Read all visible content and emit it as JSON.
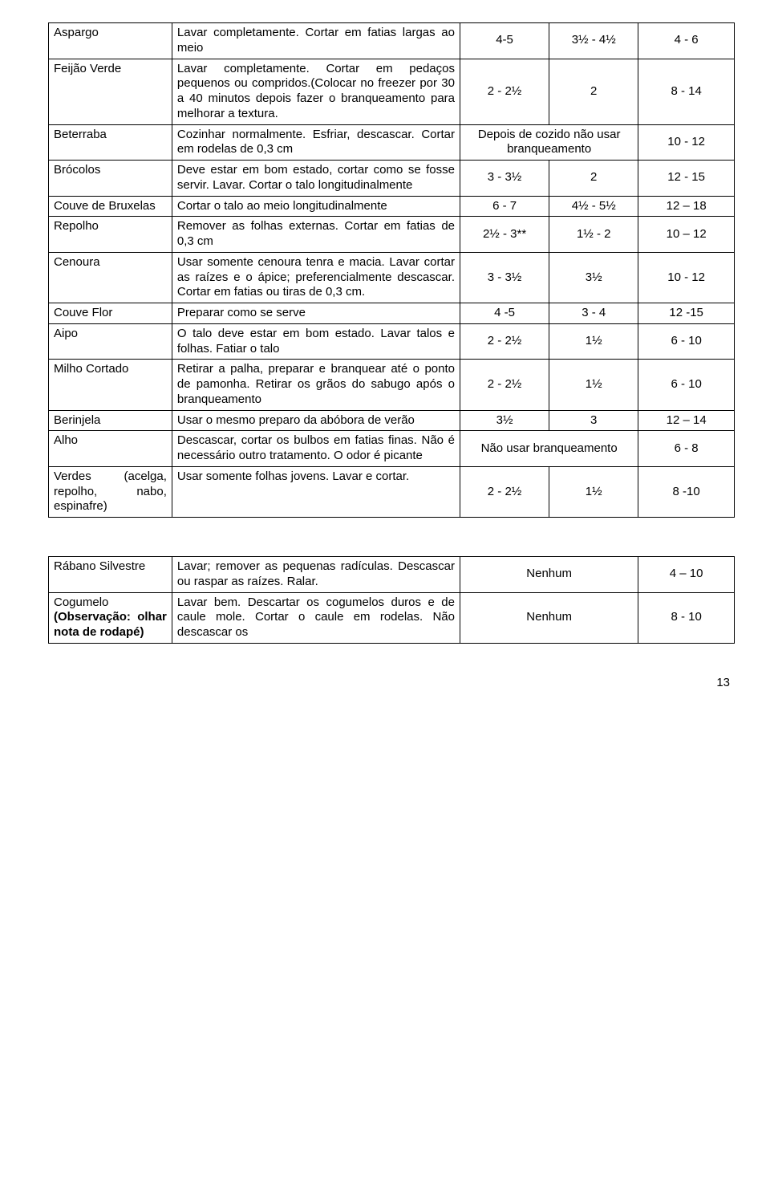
{
  "table1": {
    "rows": [
      {
        "a": "Aspargo",
        "b": "Lavar completamente. Cortar em fatias largas ao meio",
        "c": "4-5",
        "d": "3½ - 4½",
        "e": "4 - 6"
      },
      {
        "a": "Feijão Verde",
        "b": "Lavar completamente. Cortar em pedaços pequenos ou compridos.(Colocar no freezer por 30 a 40 minutos depois fazer o branqueamento para melhorar a textura.",
        "c": "2 - 2½",
        "d": "2",
        "e": "8 - 14"
      },
      {
        "a": "Beterraba",
        "b": "Cozinhar normalmente. Esfriar, descascar. Cortar em rodelas de 0,3 cm",
        "c_merged": "Depois de cozido não usar branqueamento",
        "e": "10 - 12"
      },
      {
        "a": "Brócolos",
        "b": "Deve estar em bom estado, cortar como se fosse servir. Lavar. Cortar o talo longitudinalmente",
        "c": "3 - 3½",
        "d": "2",
        "e": "12 - 15"
      },
      {
        "a": "Couve de Bruxelas",
        "b": "Cortar o talo ao meio longitudinalmente",
        "c": "6 - 7",
        "d": "4½ - 5½",
        "e": "12 – 18"
      },
      {
        "a": "Repolho",
        "b": "Remover as folhas externas. Cortar em fatias de 0,3 cm",
        "c": "2½ - 3**",
        "d": "1½ - 2",
        "e": "10 – 12"
      },
      {
        "a": "Cenoura",
        "b": "Usar somente cenoura tenra e macia. Lavar cortar as raízes e o ápice; preferencialmente descascar. Cortar em fatias ou tiras de 0,3 cm.",
        "c": "3 - 3½",
        "d": "3½",
        "e": "10 - 12"
      },
      {
        "a": "Couve Flor",
        "b": "Preparar como se serve",
        "c": "4 -5",
        "d": "3 - 4",
        "e": "12 -15"
      },
      {
        "a": "Aipo",
        "b": "O talo deve estar em bom estado. Lavar talos e folhas. Fatiar o talo",
        "c": "2 - 2½",
        "d": "1½",
        "e": "6 - 10"
      },
      {
        "a": "Milho Cortado",
        "b": "Retirar a palha, preparar e branquear até o ponto de pamonha. Retirar os grãos do sabugo após o branqueamento",
        "c": "2 - 2½",
        "d": "1½",
        "e": "6 - 10"
      },
      {
        "a": "Berinjela",
        "b": "Usar o mesmo preparo da abóbora de verão",
        "c": "3½",
        "d": "3",
        "e": "12 – 14"
      },
      {
        "a": "Alho",
        "b": "Descascar, cortar os bulbos em fatias finas. Não é necessário outro tratamento. O odor é picante",
        "c_merged": "Não usar branqueamento",
        "e": "6 - 8"
      },
      {
        "a": "Verdes (acelga, repolho, nabo, espinafre)",
        "b": "Usar somente folhas jovens. Lavar e cortar.",
        "c": "2 - 2½",
        "d": "1½",
        "e": "8 -10"
      }
    ]
  },
  "table2": {
    "rows": [
      {
        "a": "Rábano Silvestre",
        "b": "Lavar; remover as pequenas radículas. Descascar ou raspar as raízes. Ralar.",
        "c_merged": "Nenhum",
        "e": "4 – 10"
      },
      {
        "a_html": "Cogumelo <b>(Observação: olhar nota de rodapé)</b>",
        "b": "Lavar bem. Descartar os cogumelos duros e de caule mole. Cortar o caule em rodelas. Não descascar os",
        "c_merged": "Nenhum",
        "e": "8 - 10"
      }
    ]
  },
  "page_number": "13"
}
